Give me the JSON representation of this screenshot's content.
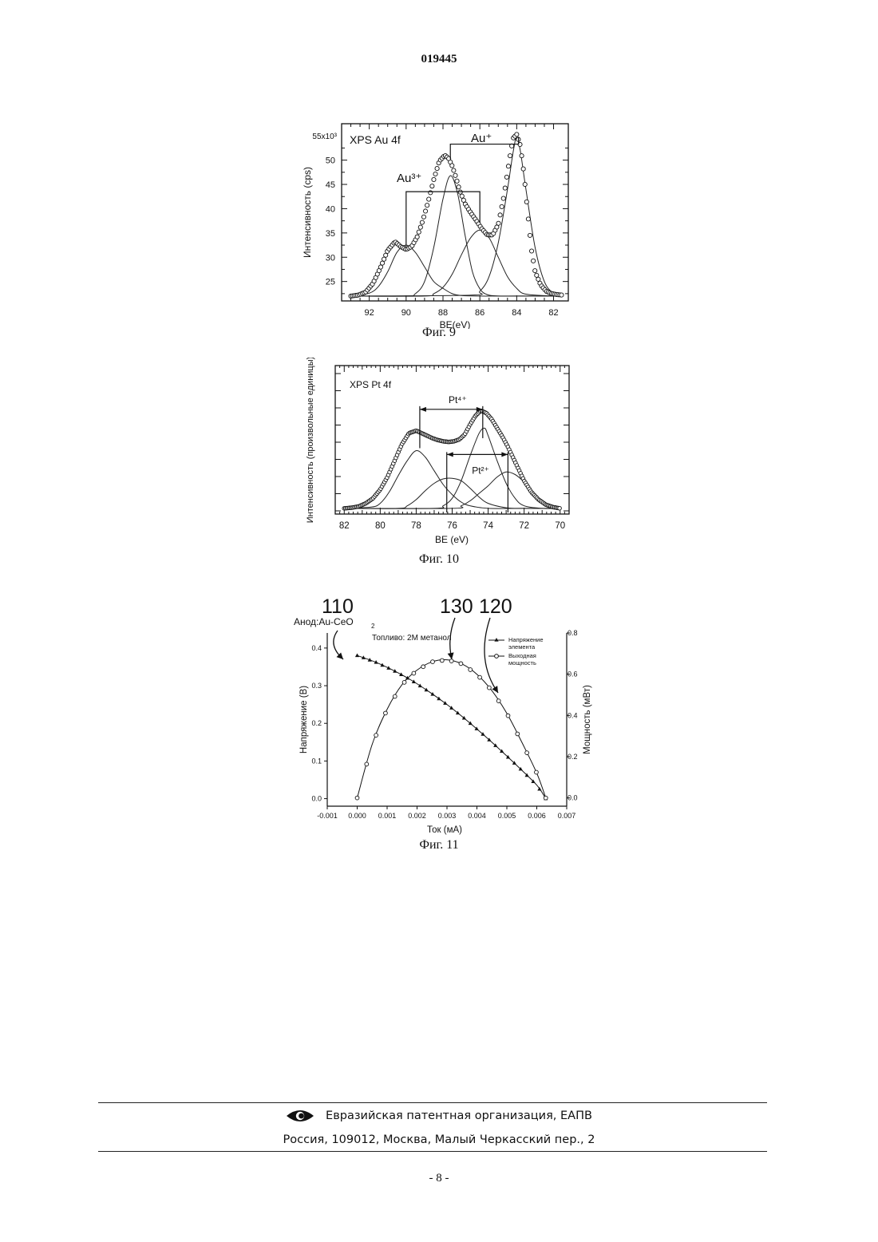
{
  "header": {
    "patent_number": "019445"
  },
  "figures": [
    {
      "caption": "Фиг. 9",
      "chart_data": {
        "type": "line",
        "title": "XPS Au 4f",
        "xlabel": "BE(eV)",
        "ylabel": "Интенсивность (cps)",
        "y_multiplier": "55x10³",
        "x_reversed": true,
        "xlim": [
          93.5,
          81.2
        ],
        "ylim": [
          21,
          57.5
        ],
        "x_ticks": [
          92,
          90,
          88,
          86,
          84,
          82
        ],
        "y_ticks": [
          25,
          30,
          35,
          40,
          45,
          50
        ],
        "series": [
          {
            "style": "circles",
            "x": [
              93.0,
              92.6,
              92.2,
              91.8,
              91.4,
              91.0,
              90.6,
              90.3,
              90.0,
              89.7,
              89.4,
              89.1,
              88.8,
              88.5,
              88.2,
              87.9,
              87.7,
              87.5,
              87.3,
              87.1,
              86.8,
              86.5,
              86.2,
              85.9,
              85.6,
              85.3,
              85.0,
              84.7,
              84.4,
              84.2,
              84.0,
              83.8,
              83.6,
              83.4,
              83.2,
              83.0,
              82.7,
              82.4,
              82.1,
              81.8,
              81.5
            ],
            "y": [
              22.0,
              22.2,
              22.8,
              24.6,
              27.8,
              31.4,
              33.2,
              32.2,
              31.6,
              32.2,
              34.2,
              37.5,
              41.5,
              46.0,
              49.8,
              51.0,
              50.4,
              48.8,
              46.5,
              43.8,
              41.0,
              39.2,
              37.6,
              35.9,
              34.6,
              34.6,
              36.8,
              42.5,
              50.0,
              54.5,
              55.3,
              53.0,
              47.0,
              39.0,
              31.5,
              27.0,
              24.3,
              23.0,
              22.5,
              22.3,
              22.2
            ]
          },
          {
            "style": "peak",
            "x": [
              93.0,
              92.0,
              91.5,
              91.0,
              90.5,
              90.0,
              89.5,
              89.0,
              88.5,
              88.0,
              87.5,
              87.0,
              86.0,
              85.0,
              84.0,
              83.0,
              82.0,
              81.5
            ],
            "y": [
              22.0,
              22.6,
              24.0,
              27.0,
              31.0,
              32.5,
              31.0,
              28.0,
              25.0,
              23.6,
              22.5,
              22.1,
              22.0,
              22.0,
              22.0,
              22.0,
              22.0,
              22.0
            ]
          },
          {
            "style": "peak",
            "x": [
              93.0,
              90.0,
              89.5,
              89.0,
              88.5,
              88.0,
              87.6,
              87.2,
              86.8,
              86.4,
              86.0,
              85.6,
              85.0,
              84.0,
              82.0,
              81.5
            ],
            "y": [
              22.0,
              22.0,
              22.5,
              25.0,
              32.0,
              42.0,
              46.8,
              43.0,
              34.5,
              27.0,
              23.5,
              22.3,
              22.0,
              22.0,
              22.0,
              22.0
            ]
          },
          {
            "style": "peak",
            "x": [
              93.0,
              89.0,
              88.5,
              88.0,
              87.5,
              87.0,
              86.5,
              86.0,
              85.5,
              85.0,
              84.5,
              84.0,
              83.5,
              82.0,
              81.5
            ],
            "y": [
              22.0,
              22.0,
              22.5,
              23.8,
              26.5,
              30.5,
              34.0,
              35.6,
              34.0,
              30.0,
              26.0,
              23.6,
              22.4,
              22.0,
              22.0
            ]
          },
          {
            "style": "peak",
            "x": [
              93.0,
              86.5,
              86.0,
              85.5,
              85.0,
              84.5,
              84.2,
              84.0,
              83.8,
              83.5,
              83.0,
              82.5,
              82.0,
              81.5
            ],
            "y": [
              22.0,
              22.2,
              23.0,
              26.0,
              33.0,
              44.0,
              51.5,
              54.8,
              51.8,
              44.0,
              32.0,
              25.0,
              22.6,
              22.1
            ]
          }
        ],
        "annotations": [
          {
            "label": "Au³⁺",
            "x1": 90.0,
            "x2": 86.0,
            "level": 43.5
          },
          {
            "label": "Au⁺",
            "x1": 87.6,
            "x2": 83.9,
            "level": 53.3
          }
        ]
      }
    },
    {
      "caption": "Фиг. 10",
      "chart_data": {
        "type": "line",
        "title": "XPS Pt 4f",
        "xlabel": "BE (eV)",
        "ylabel": "Интенсивность (произвольные единицы)",
        "x_reversed": true,
        "xlim": [
          82.5,
          69.5
        ],
        "ylim": [
          0,
          100
        ],
        "x_ticks": [
          82,
          80,
          78,
          76,
          74,
          72,
          70
        ],
        "series": [
          {
            "style": "circles",
            "x": [
              82.0,
              81.6,
              81.2,
              80.8,
              80.4,
              80.0,
              79.6,
              79.2,
              78.8,
              78.4,
              78.0,
              77.7,
              77.4,
              77.1,
              76.8,
              76.5,
              76.2,
              75.9,
              75.6,
              75.3,
              75.0,
              74.7,
              74.4,
              74.1,
              73.8,
              73.5,
              73.2,
              72.9,
              72.6,
              72.3,
              72.0,
              71.6,
              71.2,
              70.8,
              70.4,
              70.0
            ],
            "y": [
              2,
              2.5,
              3.5,
              6,
              10,
              17,
              27,
              40,
              53,
              62,
              64,
              62,
              60,
              58,
              56.5,
              55.5,
              55,
              55.5,
              57,
              61,
              69,
              76,
              80,
              78,
              73,
              66,
              59,
              51,
              42,
              33,
              24,
              15,
              9,
              5,
              3,
              2
            ]
          },
          {
            "style": "peak",
            "x": [
              82.0,
              80.5,
              80.0,
              79.5,
              79.0,
              78.5,
              78.0,
              77.5,
              77.0,
              76.5,
              76.0,
              75.5,
              75.0,
              74.0,
              72.0,
              70.0
            ],
            "y": [
              2,
              3,
              6,
              15,
              28,
              40,
              48,
              43,
              32,
              21,
              13,
              7,
              4,
              2,
              2,
              2
            ]
          },
          {
            "style": "peak",
            "x": [
              82.0,
              77.0,
              76.5,
              76.0,
              75.5,
              75.0,
              74.5,
              74.2,
              74.0,
              73.5,
              73.0,
              72.5,
              72.0,
              71.0,
              70.0
            ],
            "y": [
              2,
              2,
              4,
              10,
              24,
              44,
              62,
              66,
              60,
              40,
              22,
              10,
              4,
              2,
              2
            ]
          },
          {
            "style": "peak",
            "x": [
              82.0,
              79.0,
              78.5,
              78.0,
              77.5,
              77.0,
              76.5,
              76.0,
              75.5,
              75.0,
              74.5,
              74.0,
              73.0,
              72.0,
              70.0
            ],
            "y": [
              2,
              2,
              4,
              9,
              16,
              22,
              25.5,
              26,
              24,
              18,
              11,
              6,
              2.5,
              2,
              2
            ]
          },
          {
            "style": "peak",
            "x": [
              82.0,
              76.0,
              75.5,
              75.0,
              74.5,
              74.0,
              73.5,
              73.0,
              72.5,
              72.0,
              71.5,
              71.0,
              70.5,
              70.0
            ],
            "y": [
              2,
              2,
              4,
              8,
              14,
              20,
              27,
              31,
              29,
              23,
              15,
              8,
              4,
              2
            ]
          }
        ],
        "annotations": [
          {
            "label": "Pt⁴⁺",
            "x1": 77.8,
            "x2": 74.3,
            "level": 81
          },
          {
            "label": "Pt²⁺",
            "x1": 76.3,
            "x2": 72.9,
            "level": 45
          }
        ]
      }
    },
    {
      "caption": "Фиг. 11",
      "ref_numbers": [
        "110",
        "130",
        "120"
      ],
      "chart_data": {
        "type": "line",
        "xlabel": "Ток (мА)",
        "ylabel": "Напряжение (В)",
        "y2label": "Мощность (мВт)",
        "xlim": [
          -0.001,
          0.007
        ],
        "ylim": [
          -0.02,
          0.44
        ],
        "y2lim": [
          -0.04,
          0.8
        ],
        "x_ticks": [
          "-0.001",
          "0.000",
          "0.001",
          "0.002",
          "0.003",
          "0.004",
          "0.005",
          "0.006",
          "0.007"
        ],
        "y_ticks": [
          "0.0",
          "0.1",
          "0.2",
          "0.3",
          "0.4"
        ],
        "y2_ticks": [
          "0.0",
          "0.2",
          "0.4",
          "0.6",
          "0.8"
        ],
        "annotations": {
          "anode": "Анод:Au-CeO",
          "anode_sub": "2",
          "fuel": "Топливо: 2M метанол"
        },
        "legend": [
          {
            "marker": "triangle",
            "lines": [
              "Напряжение",
              "элемента"
            ]
          },
          {
            "marker": "circle",
            "lines": [
              "Выходная",
              "мощность"
            ]
          }
        ],
        "series": [
          {
            "name": "Напряжение элемента",
            "axis": "left",
            "x": [
              0.0,
              0.0006,
              0.0012,
              0.0018,
              0.0024,
              0.003,
              0.0036,
              0.0042,
              0.0048,
              0.0054,
              0.006,
              0.0063
            ],
            "y": [
              0.38,
              0.363,
              0.341,
              0.315,
              0.284,
              0.25,
              0.212,
              0.171,
              0.128,
              0.083,
              0.036,
              0.0
            ]
          },
          {
            "name": "Выходная мощность",
            "axis": "right",
            "x": [
              0.0,
              0.0005,
              0.001,
              0.0015,
              0.002,
              0.0025,
              0.003,
              0.0035,
              0.004,
              0.0045,
              0.005,
              0.0055,
              0.006,
              0.0063
            ],
            "y": [
              0.0,
              0.26,
              0.43,
              0.55,
              0.62,
              0.66,
              0.67,
              0.65,
              0.6,
              0.52,
              0.41,
              0.27,
              0.12,
              0.0
            ]
          }
        ]
      }
    }
  ],
  "footer": {
    "org": "Евразийская патентная организация, ЕАПВ",
    "address": "Россия, 109012, Москва, Малый Черкасский пер., 2",
    "page": "- 8 -"
  }
}
